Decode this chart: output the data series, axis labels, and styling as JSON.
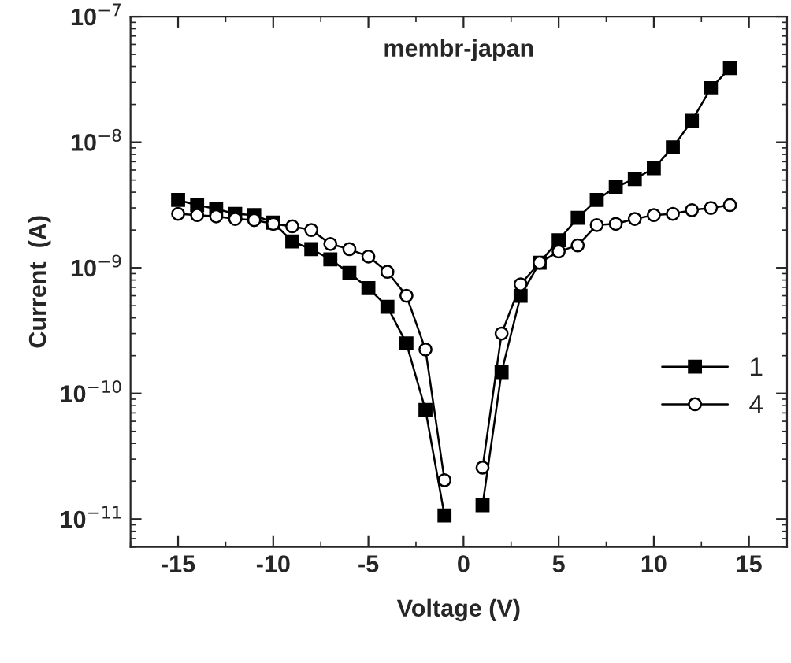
{
  "chart_data": {
    "type": "line",
    "title": "membr-japan",
    "xlabel": "Voltage (V)",
    "ylabel": "Current  (A)",
    "log": "y",
    "xlim": [
      -17.5,
      17
    ],
    "xticks": [
      -15,
      -10,
      -5,
      0,
      5,
      10,
      15
    ],
    "ylim": [
      6e-12,
      1e-07
    ],
    "yticks": [
      {
        "value": 1e-11,
        "label": "10$^{−11}$"
      },
      {
        "value": 1e-10,
        "label": "10$^{−10}$"
      },
      {
        "value": 1e-09,
        "label": "10$^{−9}$"
      },
      {
        "value": 1e-08,
        "label": "10$^{−8}$"
      },
      {
        "value": 1e-07,
        "label": "10$^{−7}$"
      }
    ],
    "grid": false,
    "legend": "right",
    "line_style": "solid",
    "series": [
      {
        "name": "1",
        "color": "#000000",
        "marker": "square",
        "x": [
          -15,
          -14,
          -13,
          -12,
          -11,
          -10,
          -9,
          -8,
          -7,
          -6,
          -5,
          -4,
          -3,
          -2,
          -1,
          0,
          1,
          2,
          3,
          4,
          5,
          6,
          7,
          8,
          9,
          10,
          11,
          12,
          13,
          14
        ],
        "values": [
          3.47e-09,
          3.16e-09,
          2.95e-09,
          2.69e-09,
          2.63e-09,
          2.29e-09,
          1.62e-09,
          1.41e-09,
          1.17e-09,
          9.1e-10,
          6.9e-10,
          4.9e-10,
          2.5e-10,
          7.4e-11,
          1.07e-11,
          null,
          1.29e-11,
          1.48e-10,
          6e-10,
          1.1e-09,
          1.66e-09,
          2.5e-09,
          3.47e-09,
          4.4e-09,
          5.1e-09,
          6.2e-09,
          9.1e-09,
          1.48e-08,
          2.7e-08,
          3.9e-08
        ]
      },
      {
        "name": "4",
        "color": "#000000",
        "marker": "circle",
        "x": [
          -15,
          -14,
          -13,
          -12,
          -11,
          -10,
          -9,
          -8,
          -7,
          -6,
          -5,
          -4,
          -3,
          -2,
          -1,
          0,
          1,
          2,
          3,
          4,
          5,
          6,
          7,
          8,
          9,
          10,
          11,
          12,
          13,
          14
        ],
        "values": [
          2.69e-09,
          2.63e-09,
          2.57e-09,
          2.45e-09,
          2.4e-09,
          2.24e-09,
          2.14e-09,
          2e-09,
          1.55e-09,
          1.41e-09,
          1.23e-09,
          9.3e-10,
          6e-10,
          2.24e-10,
          2.04e-11,
          null,
          2.57e-11,
          3e-10,
          7.4e-10,
          1.1e-09,
          1.35e-09,
          1.51e-09,
          2.19e-09,
          2.24e-09,
          2.45e-09,
          2.63e-09,
          2.69e-09,
          2.88e-09,
          3e-09,
          3.16e-09
        ]
      }
    ]
  }
}
